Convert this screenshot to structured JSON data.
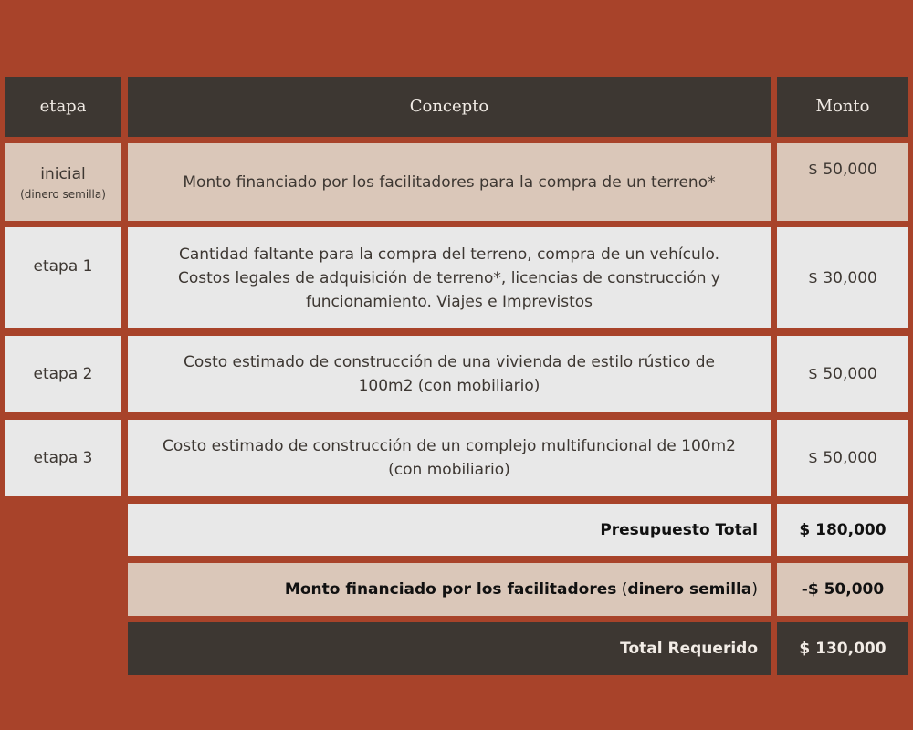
{
  "header": {
    "etapa": "etapa",
    "concepto": "Concepto",
    "monto": "Monto"
  },
  "rows": [
    {
      "etapa": "inicial",
      "etapa_note": "(dinero semilla)",
      "concepto": "Monto financiado por los facilitadores para la compra de un terreno*",
      "monto": "$ 50,000"
    },
    {
      "etapa": "etapa 1",
      "concepto": "Cantidad faltante para la compra del terreno, compra de un vehículo. Costos legales de adquisición de terreno*, licencias de construcción y funcionamiento. Viajes e Imprevistos",
      "monto": "$ 30,000"
    },
    {
      "etapa": "etapa 2",
      "concepto": "Costo estimado de construcción de una vivienda de estilo rústico de 100m2 (con mobiliario)",
      "monto": "$ 50,000"
    },
    {
      "etapa": "etapa 3",
      "concepto": "Costo estimado de construcción de un complejo multifuncional de 100m2 (con mobiliario)",
      "monto": "$ 50,000"
    }
  ],
  "summary": {
    "total_label": "Presupuesto Total",
    "total_value": "$ 180,000",
    "seed_label_a": "Monto financiado por los facilitadores",
    "seed_label_b": "dinero semilla",
    "seed_value": "-$ 50,000",
    "required_label": "Total Requerido",
    "required_value": "$ 130,000"
  },
  "colors": {
    "background": "#a8432a",
    "dark": "#3d3732",
    "beige": "#dac7b9",
    "light": "#e8e8e8"
  }
}
